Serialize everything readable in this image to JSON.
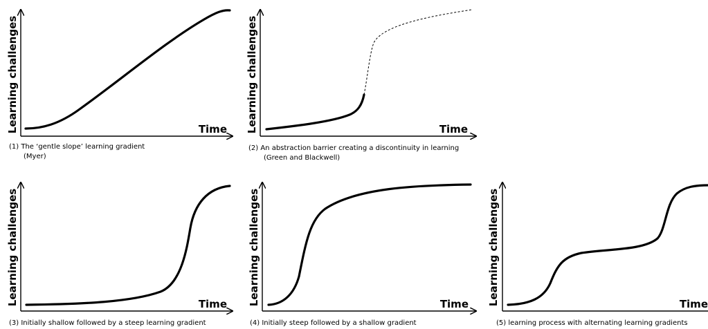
{
  "panels": [
    {
      "y_label": "Learning challenges",
      "x_label": "Time",
      "caption_line1": "(1)  The ‘gentle slope’ learning gradient",
      "caption_line2": "(Myer)"
    },
    {
      "y_label": "Learning challenges",
      "x_label": "Time",
      "caption_line1": "(2) An abstraction barrier creating a discontinuity in learning",
      "caption_line2": "(Green and Blackwell)"
    },
    {
      "y_label": "Learning challenges",
      "x_label": "Time",
      "caption_line1": "(3) Initially shallow followed by a steep learning gradient",
      "caption_line2": ""
    },
    {
      "y_label": "Learning challenges",
      "x_label": "Time",
      "caption_line1": "(4) Initially steep followed by a shallow gradient",
      "caption_line2": ""
    },
    {
      "y_label": "Learning challenges",
      "x_label": "Time",
      "caption_line1": "(5) learning process with alternating learning gradients",
      "caption_line2": ""
    }
  ]
}
